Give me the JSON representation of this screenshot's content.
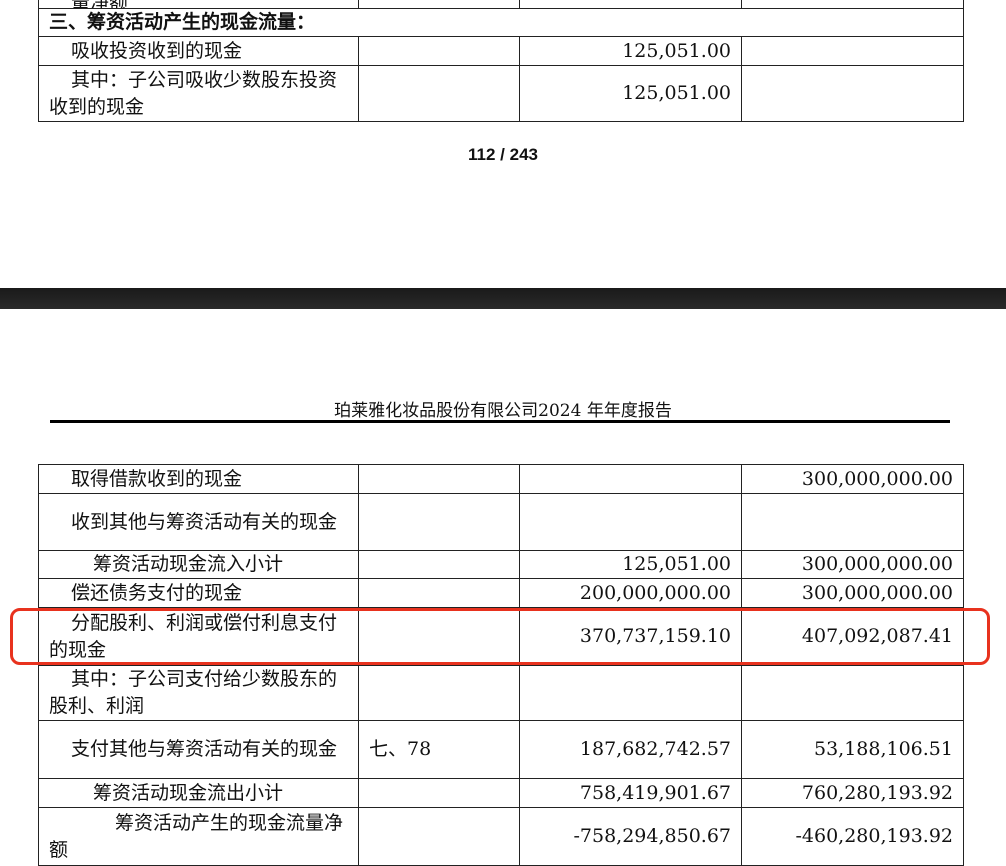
{
  "top_table": {
    "partial_row": "量净额",
    "section_heading": "三、筹资活动产生的现金流量：",
    "rows": [
      {
        "label": "吸收投资收到的现金",
        "note": "",
        "current": "125,051.00",
        "previous": ""
      },
      {
        "label": "其中：子公司吸收少数股东投资收到的现金",
        "note": "",
        "current": "125,051.00",
        "previous": ""
      }
    ]
  },
  "page_number": "112 / 243",
  "page_header": "珀莱雅化妆品股份有限公司2024 年年度报告",
  "bottom_table": {
    "rows": [
      {
        "label": "取得借款收到的现金",
        "note": "",
        "current": "",
        "previous": "300,000,000.00"
      },
      {
        "label": "收到其他与筹资活动有关的现金",
        "note": "",
        "current": "",
        "previous": ""
      },
      {
        "label": "筹资活动现金流入小计",
        "note": "",
        "current": "125,051.00",
        "previous": "300,000,000.00"
      },
      {
        "label": "偿还债务支付的现金",
        "note": "",
        "current": "200,000,000.00",
        "previous": "300,000,000.00"
      },
      {
        "label": "分配股利、利润或偿付利息支付的现金",
        "note": "",
        "current": "370,737,159.10",
        "previous": "407,092,087.41"
      },
      {
        "label": "其中：子公司支付给少数股东的股利、利润",
        "note": "",
        "current": "",
        "previous": ""
      },
      {
        "label": "支付其他与筹资活动有关的现金",
        "note": "七、78",
        "current": "187,682,742.57",
        "previous": "53,188,106.51"
      },
      {
        "label": "筹资活动现金流出小计",
        "note": "",
        "current": "758,419,901.67",
        "previous": "760,280,193.92"
      },
      {
        "label": "筹资活动产生的现金流量净额",
        "note": "",
        "current": "-758,294,850.67",
        "previous": "-460,280,193.92"
      }
    ]
  },
  "highlight_color": "#e8321e"
}
